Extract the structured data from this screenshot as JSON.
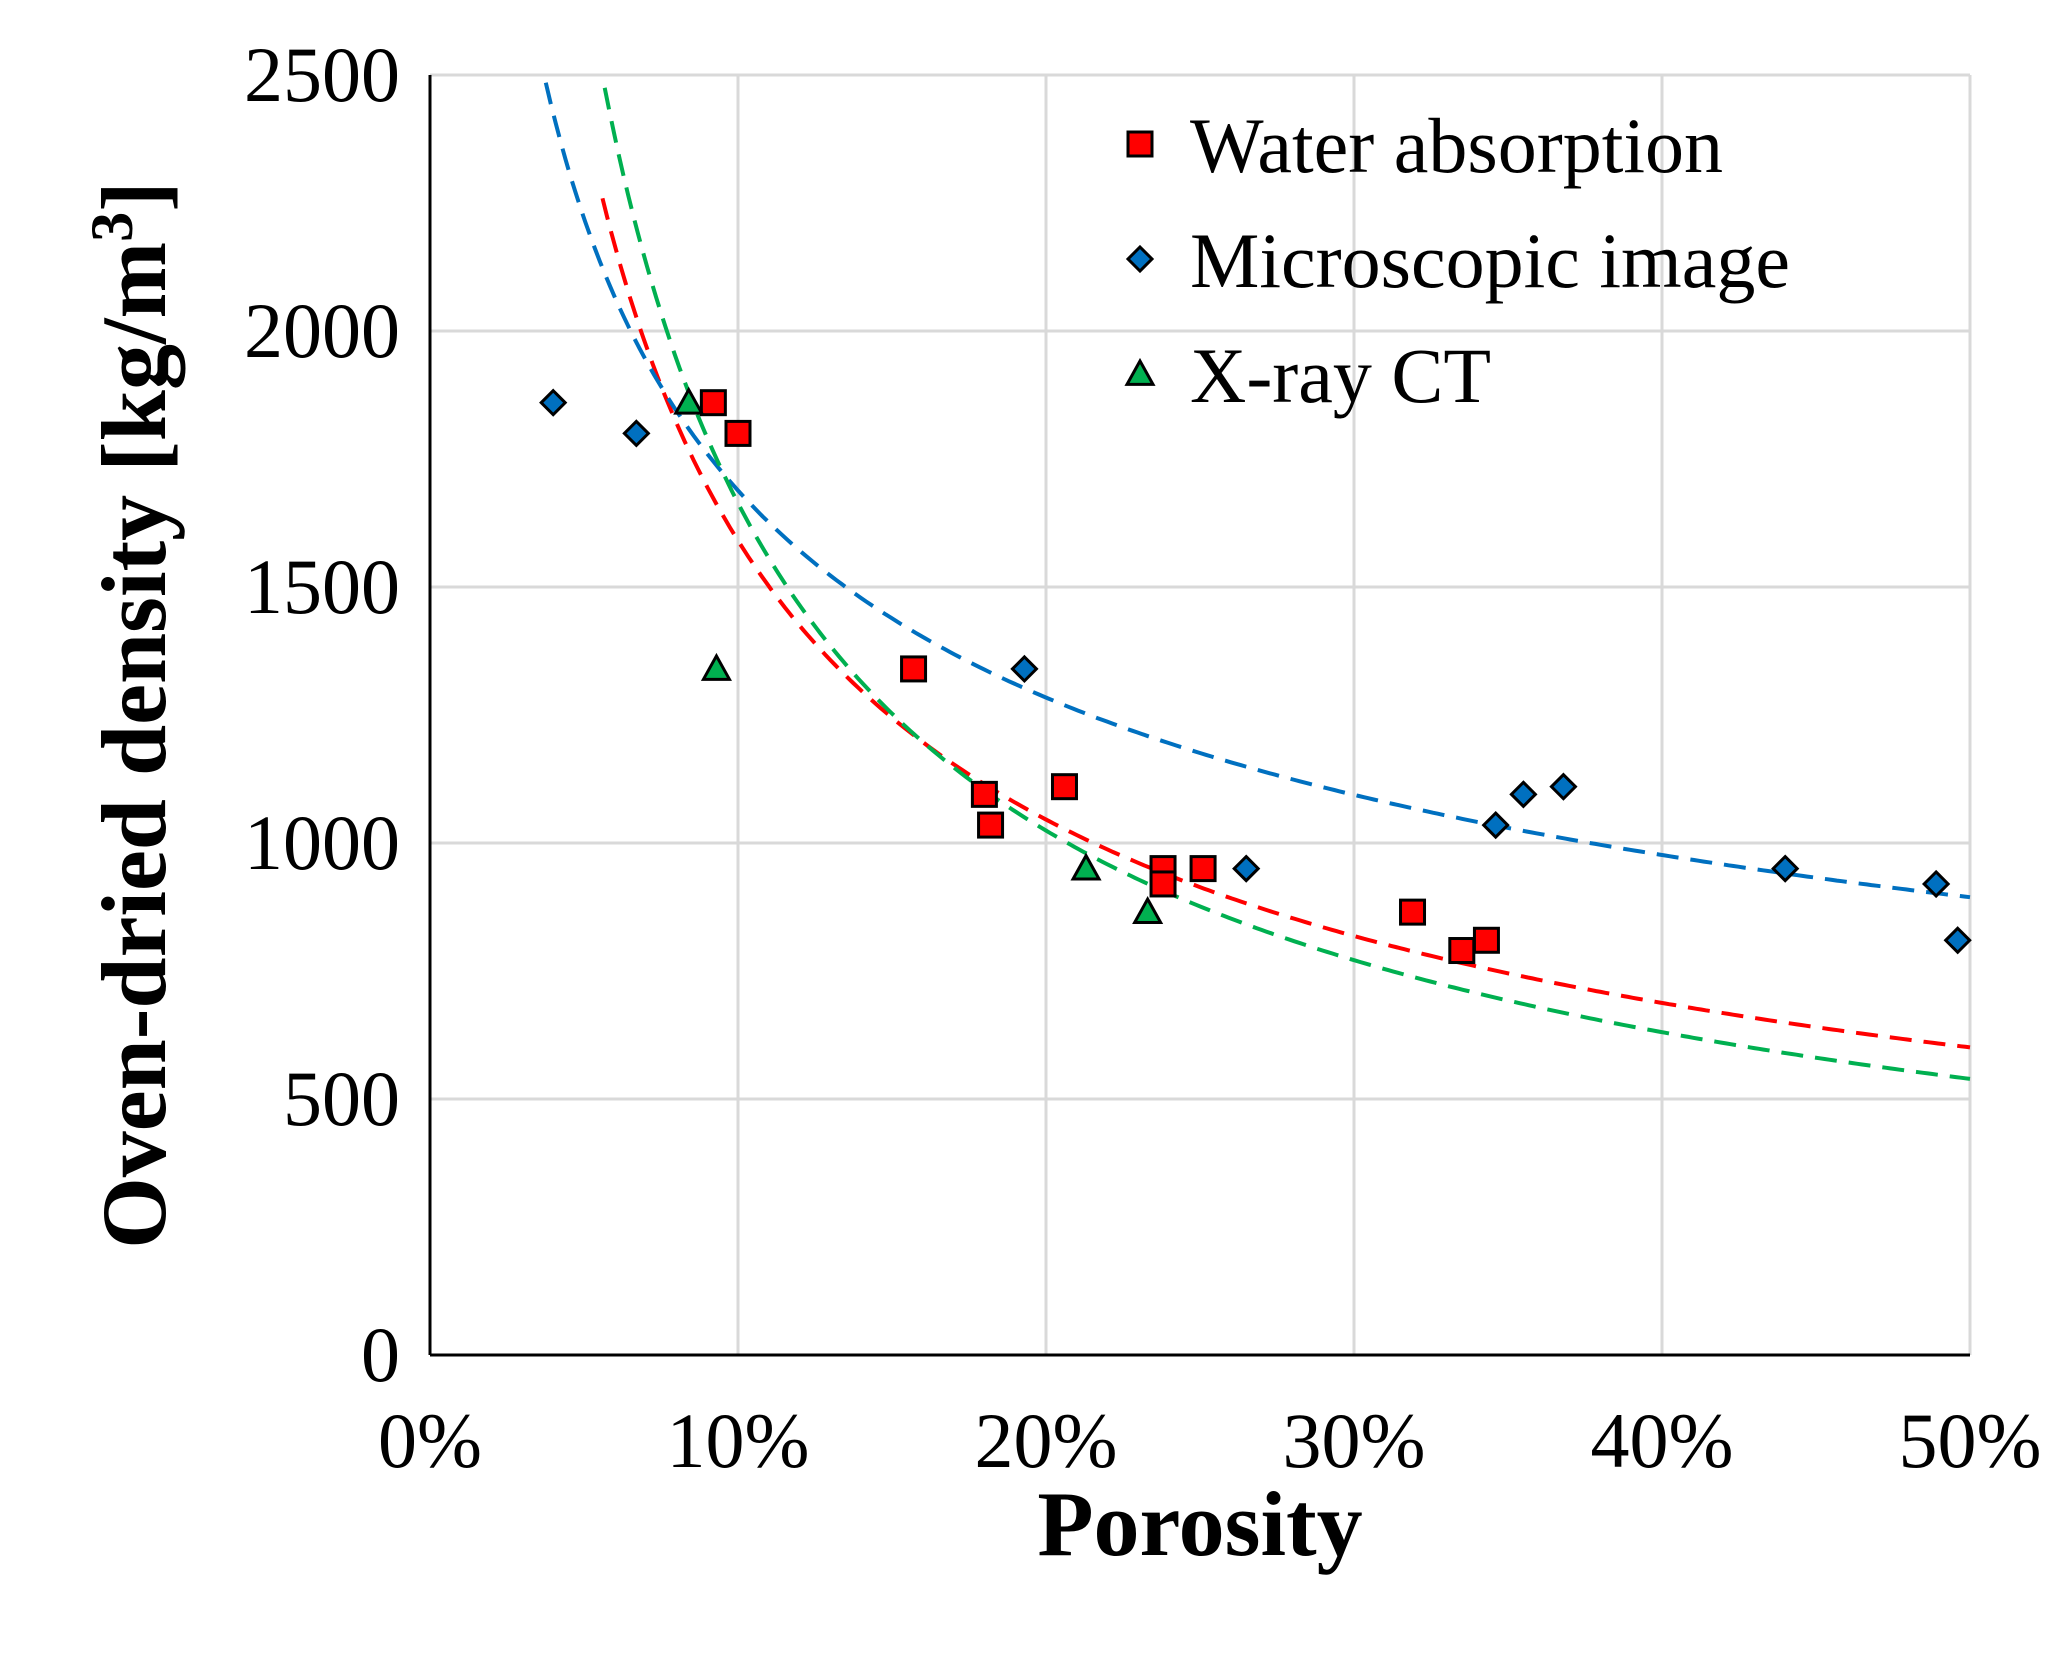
{
  "chart_data": {
    "type": "scatter",
    "title": "",
    "xlabel": "Porosity",
    "ylabel": "Oven-dried density [kg/m³]",
    "xlim": [
      0,
      0.5
    ],
    "ylim": [
      0,
      2500
    ],
    "grid": true,
    "legend_position": "top-right",
    "x_ticks": [
      {
        "value": 0.0,
        "label": "0%"
      },
      {
        "value": 0.1,
        "label": "10%"
      },
      {
        "value": 0.2,
        "label": "20%"
      },
      {
        "value": 0.3,
        "label": "30%"
      },
      {
        "value": 0.4,
        "label": "40%"
      },
      {
        "value": 0.5,
        "label": "50%"
      }
    ],
    "y_ticks": [
      {
        "value": 0,
        "label": "0"
      },
      {
        "value": 500,
        "label": "500"
      },
      {
        "value": 1000,
        "label": "1000"
      },
      {
        "value": 1500,
        "label": "1500"
      },
      {
        "value": 2000,
        "label": "2000"
      },
      {
        "value": 2500,
        "label": "2500"
      }
    ],
    "series": [
      {
        "name": "Water absorption",
        "marker": "square",
        "color": "#ff0000",
        "points": [
          {
            "x": 0.092,
            "y": 1860
          },
          {
            "x": 0.1,
            "y": 1800
          },
          {
            "x": 0.157,
            "y": 1340
          },
          {
            "x": 0.18,
            "y": 1095
          },
          {
            "x": 0.182,
            "y": 1035
          },
          {
            "x": 0.206,
            "y": 1110
          },
          {
            "x": 0.238,
            "y": 950
          },
          {
            "x": 0.238,
            "y": 920
          },
          {
            "x": 0.251,
            "y": 950
          },
          {
            "x": 0.319,
            "y": 865
          },
          {
            "x": 0.335,
            "y": 790
          },
          {
            "x": 0.343,
            "y": 810
          }
        ]
      },
      {
        "name": "Microscopic image",
        "marker": "diamond",
        "color": "#0070c0",
        "points": [
          {
            "x": 0.04,
            "y": 1860
          },
          {
            "x": 0.067,
            "y": 1800
          },
          {
            "x": 0.193,
            "y": 1340
          },
          {
            "x": 0.265,
            "y": 950
          },
          {
            "x": 0.346,
            "y": 1035
          },
          {
            "x": 0.355,
            "y": 1095
          },
          {
            "x": 0.368,
            "y": 1110
          },
          {
            "x": 0.44,
            "y": 950
          },
          {
            "x": 0.489,
            "y": 920
          },
          {
            "x": 0.496,
            "y": 810
          }
        ]
      },
      {
        "name": "X-ray CT",
        "marker": "triangle",
        "color": "#00b050",
        "points": [
          {
            "x": 0.084,
            "y": 1860
          },
          {
            "x": 0.093,
            "y": 1340
          },
          {
            "x": 0.213,
            "y": 950
          },
          {
            "x": 0.233,
            "y": 865
          }
        ]
      }
    ],
    "trendlines": [
      {
        "series": "Water absorption",
        "style": "dashed",
        "color": "#ff0000",
        "form": "power",
        "a": 395.0,
        "b": -0.605,
        "x_range": [
          0.056,
          0.5
        ]
      },
      {
        "series": "Microscopic image",
        "style": "dashed",
        "color": "#0070c0",
        "form": "power",
        "a": 680.0,
        "b": -0.395,
        "x_range": [
          0.02,
          0.5
        ]
      },
      {
        "series": "X-ray CT",
        "style": "dashed",
        "color": "#00b050",
        "form": "power",
        "a": 332.0,
        "b": -0.7,
        "x_range": [
          0.043,
          0.5
        ]
      }
    ]
  }
}
